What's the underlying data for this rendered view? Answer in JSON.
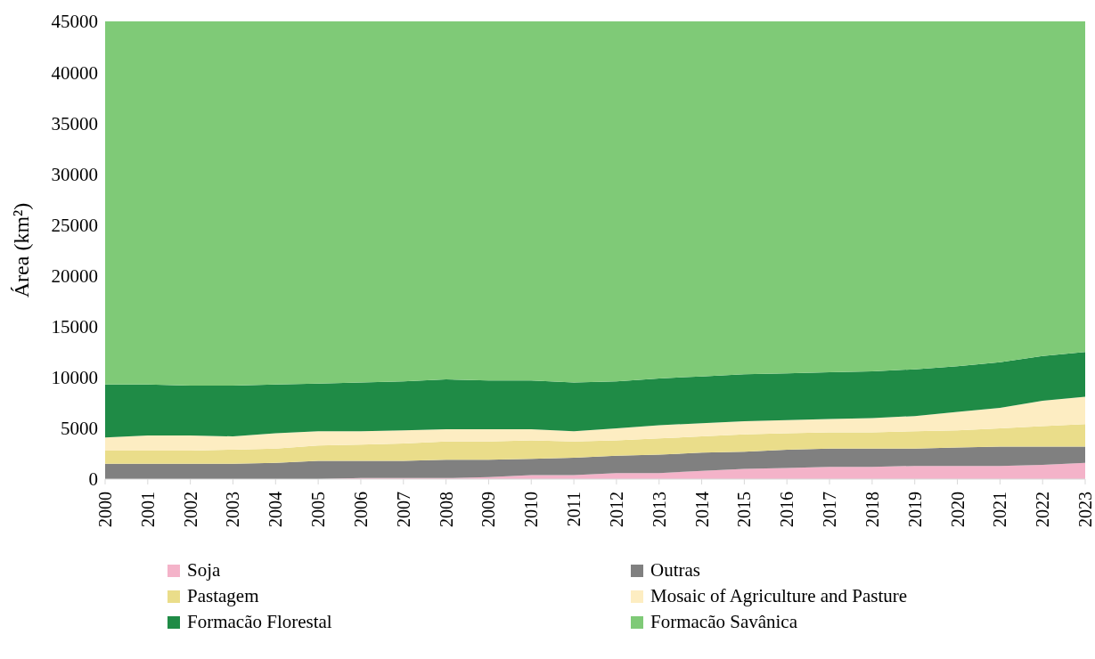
{
  "chart_data": {
    "type": "area",
    "stacked": true,
    "ylabel": "Área (km²)",
    "categories": [
      "2000",
      "2001",
      "2002",
      "2003",
      "2004",
      "2005",
      "2006",
      "2007",
      "2008",
      "2009",
      "2010",
      "2011",
      "2012",
      "2013",
      "2014",
      "2015",
      "2016",
      "2017",
      "2018",
      "2019",
      "2020",
      "2021",
      "2022",
      "2023"
    ],
    "series": [
      {
        "name": "Soja",
        "color": "#f4b3c9",
        "values": [
          0,
          0,
          0,
          0,
          0,
          0,
          100,
          100,
          100,
          200,
          400,
          400,
          600,
          600,
          800,
          1000,
          1100,
          1200,
          1200,
          1300,
          1300,
          1300,
          1400,
          1600
        ]
      },
      {
        "name": "Outras",
        "color": "#808080",
        "values": [
          1500,
          1500,
          1500,
          1500,
          1600,
          1800,
          1700,
          1700,
          1800,
          1700,
          1600,
          1700,
          1700,
          1800,
          1800,
          1700,
          1800,
          1800,
          1800,
          1700,
          1800,
          1900,
          1800,
          1600
        ]
      },
      {
        "name": "Pastagem",
        "color": "#eadd8a",
        "values": [
          1300,
          1300,
          1300,
          1400,
          1400,
          1500,
          1600,
          1700,
          1800,
          1800,
          1800,
          1600,
          1500,
          1600,
          1600,
          1700,
          1600,
          1600,
          1600,
          1700,
          1700,
          1800,
          2000,
          2200
        ]
      },
      {
        "name": "Mosaic of Agriculture and Pasture",
        "color": "#fdedc2",
        "values": [
          1300,
          1500,
          1500,
          1300,
          1500,
          1400,
          1300,
          1300,
          1200,
          1200,
          1100,
          1000,
          1200,
          1300,
          1300,
          1300,
          1300,
          1300,
          1400,
          1500,
          1800,
          2000,
          2500,
          2700
        ]
      },
      {
        "name": "Formacão Florestal",
        "color": "#1f8b46",
        "values": [
          5200,
          5000,
          4900,
          5000,
          4800,
          4700,
          4800,
          4800,
          4900,
          4800,
          4800,
          4800,
          4600,
          4600,
          4600,
          4600,
          4600,
          4600,
          4600,
          4600,
          4500,
          4500,
          4400,
          4400
        ]
      },
      {
        "name": "Formacão Savânica",
        "color": "#7fca77",
        "values": [
          35700,
          35700,
          35800,
          35800,
          35700,
          35600,
          35500,
          35400,
          35200,
          35300,
          35300,
          35500,
          35400,
          35100,
          34900,
          34700,
          34600,
          34500,
          34400,
          34200,
          33900,
          33500,
          32900,
          32500
        ]
      }
    ],
    "ylim": [
      0,
      45000
    ],
    "yticks": [
      0,
      5000,
      10000,
      15000,
      20000,
      25000,
      30000,
      35000,
      40000,
      45000
    ],
    "grid": false,
    "legend": "bottom"
  }
}
